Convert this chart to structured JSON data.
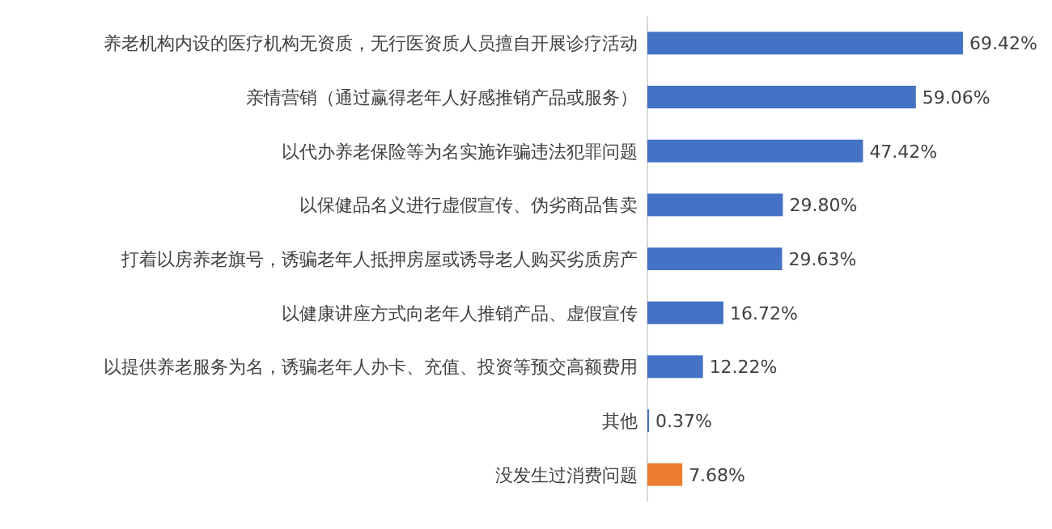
{
  "chart_data": {
    "type": "bar",
    "orientation": "horizontal",
    "relative": false,
    "categories": [
      "养老机构内设的医疗机构无资质，无行医资质人员擅自开展诊疗活动",
      "亲情营销（通过赢得老年人好感推销产品或服务）",
      "以代办养老保险等为名实施诈骗违法犯罪问题",
      "以保健品名义进行虚假宣传、伪劣商品售卖",
      "打着以房养老旗号，诱骗老年人抵押房屋或诱导老人购买劣质房产",
      "以健康讲座方式向老年人推销产品、虚假宣传",
      "以提供养老服务为名，诱骗老年人办卡、充值、投资等预交高额费用",
      "其他",
      "没发生过消费问题"
    ],
    "values": [
      69.42,
      59.06,
      47.42,
      29.8,
      29.63,
      16.72,
      12.22,
      0.37,
      7.68
    ],
    "value_labels": [
      "69.42%",
      "59.06%",
      "47.42%",
      "29.80%",
      "29.63%",
      "16.72%",
      "12.22%",
      "0.37%",
      "7.68%"
    ],
    "colors": [
      "#4472c4",
      "#4472c4",
      "#4472c4",
      "#4472c4",
      "#4472c4",
      "#4472c4",
      "#4472c4",
      "#4472c4",
      "#ed7d31"
    ]
  }
}
